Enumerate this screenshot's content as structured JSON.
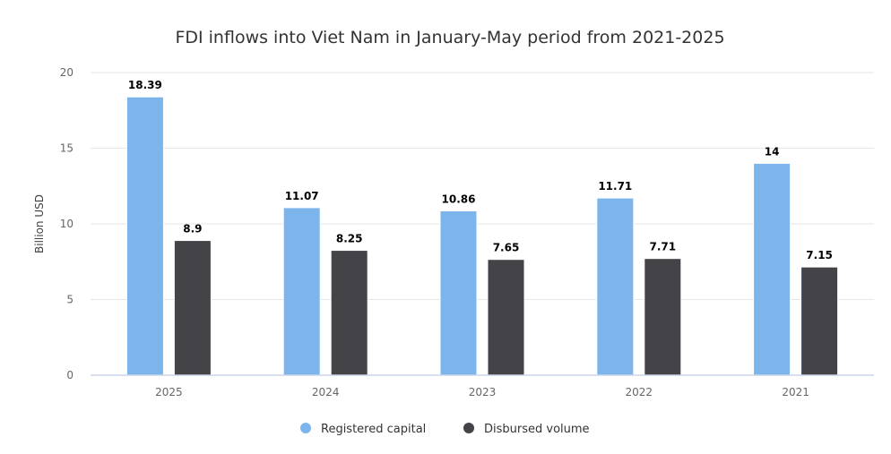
{
  "chart_data": {
    "type": "bar",
    "title": "FDI inflows into Viet Nam in January-May period from 2021-2025",
    "xlabel": "",
    "ylabel": "Billion USD",
    "ylim": [
      0,
      20
    ],
    "yticks": [
      0,
      5,
      10,
      15,
      20
    ],
    "grid": true,
    "legend": "bottom",
    "categories": [
      "2025",
      "2024",
      "2023",
      "2022",
      "2021"
    ],
    "series": [
      {
        "name": "Registered capital",
        "color": "#7cb5ec",
        "values": [
          18.39,
          11.07,
          10.86,
          11.71,
          14
        ]
      },
      {
        "name": "Disbursed volume",
        "color": "#434348",
        "values": [
          8.9,
          8.25,
          7.65,
          7.71,
          7.15
        ]
      }
    ]
  }
}
